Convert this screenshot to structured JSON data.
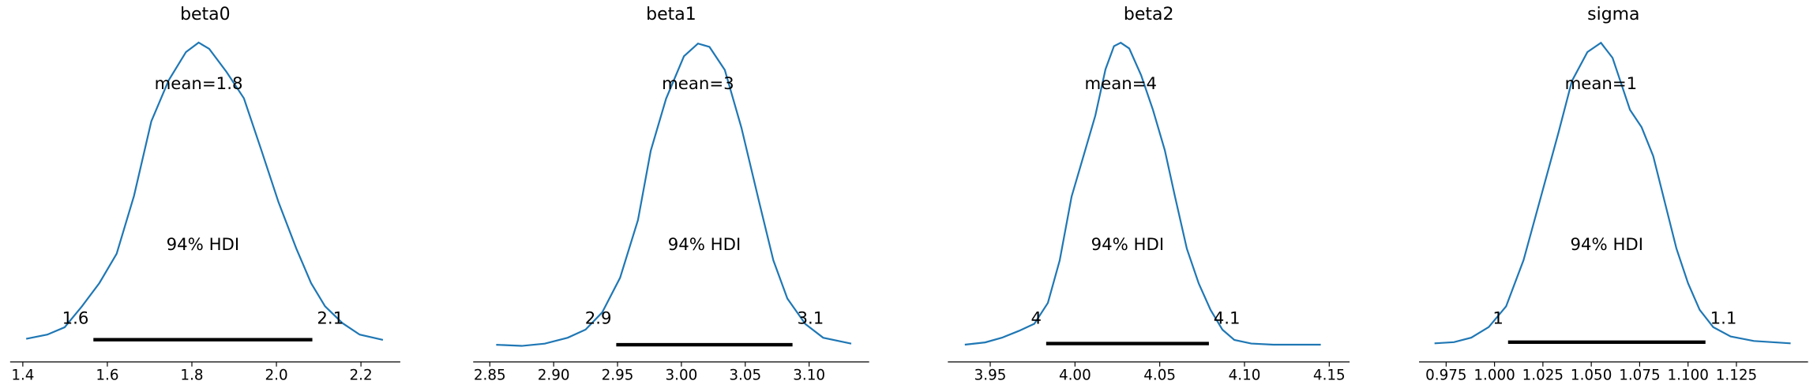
{
  "chart_data": [
    {
      "type": "kde",
      "title": "beta0",
      "color": "#1f77b4",
      "x": [
        1.408,
        1.458,
        1.499,
        1.54,
        1.581,
        1.622,
        1.663,
        1.704,
        1.745,
        1.786,
        1.816,
        1.841,
        1.882,
        1.923,
        1.964,
        2.005,
        2.047,
        2.082,
        2.115,
        2.156,
        2.197,
        2.252
      ],
      "y": [
        0.03,
        0.07,
        0.14,
        0.34,
        0.56,
        0.84,
        1.39,
        2.1,
        2.49,
        2.76,
        2.85,
        2.79,
        2.57,
        2.32,
        1.83,
        1.33,
        0.89,
        0.56,
        0.34,
        0.18,
        0.07,
        0.02
      ],
      "xlim": [
        1.37,
        2.293
      ],
      "ylim": [
        -0.19,
        2.98
      ],
      "xticks": [
        1.4,
        1.6,
        1.8,
        {
          "value": 2.0,
          "label": "2.0"
        },
        2.2
      ],
      "mean": 1.816,
      "mean_label": "mean=1.8",
      "hdi": [
        1.567,
        2.085
      ],
      "hdi_labels": [
        "1.6",
        "2.1"
      ],
      "hdi_prob_label": "94% HDI"
    },
    {
      "type": "kde",
      "title": "beta1",
      "color": "#1f77b4",
      "x": [
        2.855,
        2.875,
        2.893,
        2.911,
        2.925,
        2.938,
        2.952,
        2.966,
        2.976,
        2.988,
        3.002,
        3.013,
        3.022,
        3.034,
        3.047,
        3.061,
        3.072,
        3.083,
        3.097,
        3.111,
        3.133
      ],
      "y": [
        0.08,
        0.04,
        0.12,
        0.33,
        0.62,
        1.23,
        2.46,
        4.51,
        6.97,
        8.82,
        10.33,
        10.78,
        10.66,
        9.84,
        7.79,
        5.13,
        3.08,
        1.72,
        0.82,
        0.33,
        0.12
      ],
      "xlim": [
        2.837,
        3.147
      ],
      "ylim": [
        -0.53,
        11.3
      ],
      "xticks": [
        2.85,
        {
          "value": 2.9,
          "label": "2.90"
        },
        2.95,
        {
          "value": 3.0,
          "label": "3.00"
        },
        3.05,
        {
          "value": 3.1,
          "label": "3.10"
        }
      ],
      "mean": 3.013,
      "mean_label": "mean=3",
      "hdi": [
        2.949,
        3.087
      ],
      "hdi_labels": [
        "2.9",
        "3.1"
      ],
      "hdi_prob_label": "94% HDI"
    },
    {
      "type": "kde",
      "title": "beta2",
      "color": "#1f77b4",
      "x": [
        3.935,
        3.947,
        3.957,
        3.967,
        3.976,
        3.984,
        3.991,
        3.998,
        4.005,
        4.012,
        4.018,
        4.023,
        4.027,
        4.032,
        4.039,
        4.046,
        4.053,
        4.059,
        4.066,
        4.073,
        4.08,
        4.087,
        4.094,
        4.104,
        4.117,
        4.145
      ],
      "y": [
        0.06,
        0.18,
        0.43,
        0.79,
        1.16,
        2.26,
        4.51,
        7.87,
        10.0,
        12.14,
        14.58,
        15.8,
        15.98,
        15.68,
        14.27,
        12.44,
        10.31,
        7.87,
        5.12,
        3.29,
        1.89,
        0.85,
        0.31,
        0.12,
        0.06,
        0.06
      ],
      "xlim": [
        3.925,
        4.162
      ],
      "ylim": [
        -0.85,
        16.71
      ],
      "xticks": [
        3.95,
        {
          "value": 4.0,
          "label": "4.00"
        },
        4.05,
        {
          "value": 4.1,
          "label": "4.10"
        },
        4.15
      ],
      "mean": 4.027,
      "mean_label": "mean=4",
      "hdi": [
        3.983,
        4.079
      ],
      "hdi_labels": [
        "4",
        "4.1"
      ],
      "hdi_prob_label": "94% HDI"
    },
    {
      "type": "kde",
      "title": "sigma",
      "color": "#1f77b4",
      "x": [
        0.969,
        0.979,
        0.988,
        0.997,
        1.006,
        1.015,
        1.024,
        1.033,
        1.04,
        1.048,
        1.055,
        1.061,
        1.066,
        1.07,
        1.076,
        1.082,
        1.088,
        1.094,
        1.1,
        1.106,
        1.113,
        1.122,
        1.134,
        1.153
      ],
      "y": [
        0.07,
        0.14,
        0.41,
        1.04,
        2.28,
        5.04,
        8.83,
        12.63,
        15.73,
        17.46,
        18.01,
        17.11,
        15.39,
        14.01,
        12.97,
        11.25,
        8.49,
        5.73,
        3.66,
        2.07,
        1.04,
        0.48,
        0.21,
        0.07
      ],
      "xlim": [
        0.961,
        1.162
      ],
      "ylim": [
        -1.04,
        18.84
      ],
      "xticks": [
        0.975,
        {
          "value": 1.0,
          "label": "1.000"
        },
        1.025,
        {
          "value": 1.05,
          "label": "1.050"
        },
        1.075,
        {
          "value": 1.1,
          "label": "1.100"
        },
        1.125
      ],
      "mean": 1.055,
      "mean_label": "mean=1",
      "hdi": [
        1.007,
        1.109
      ],
      "hdi_labels": [
        "1",
        "1.1"
      ],
      "hdi_prob_label": "94% HDI"
    }
  ]
}
